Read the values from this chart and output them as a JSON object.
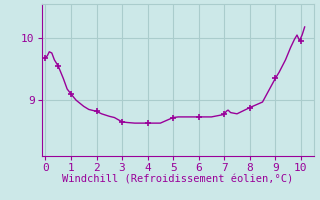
{
  "x": [
    0,
    0.08,
    0.15,
    0.25,
    0.35,
    0.5,
    0.6,
    0.7,
    0.85,
    1.0,
    1.1,
    1.2,
    1.35,
    1.5,
    1.7,
    2.0,
    2.1,
    2.2,
    2.35,
    2.5,
    2.7,
    3.0,
    3.2,
    3.5,
    4.0,
    4.2,
    4.5,
    5.0,
    5.2,
    5.5,
    6.0,
    6.2,
    6.5,
    7.0,
    7.08,
    7.15,
    7.25,
    7.5,
    8.0,
    8.5,
    9.0,
    9.15,
    9.4,
    9.6,
    9.75,
    9.85,
    9.95,
    10.05,
    10.15
  ],
  "y": [
    9.68,
    9.72,
    9.78,
    9.76,
    9.65,
    9.55,
    9.45,
    9.35,
    9.18,
    9.1,
    9.05,
    9.0,
    8.95,
    8.9,
    8.85,
    8.82,
    8.8,
    8.78,
    8.76,
    8.74,
    8.72,
    8.65,
    8.64,
    8.63,
    8.63,
    8.63,
    8.63,
    8.72,
    8.73,
    8.73,
    8.73,
    8.73,
    8.73,
    8.77,
    8.82,
    8.84,
    8.8,
    8.78,
    8.88,
    8.97,
    9.35,
    9.45,
    9.65,
    9.85,
    9.98,
    10.05,
    9.96,
    10.05,
    10.18
  ],
  "marker_x": [
    0,
    0.5,
    1.0,
    2.0,
    3.0,
    4.0,
    5.0,
    6.0,
    7.0,
    8.0,
    9.0,
    10.0
  ],
  "marker_y": [
    9.68,
    9.55,
    9.1,
    8.82,
    8.65,
    8.63,
    8.72,
    8.73,
    8.77,
    8.88,
    9.35,
    9.96
  ],
  "line_color": "#990099",
  "marker_color": "#990099",
  "bg_color": "#cce8e8",
  "grid_color": "#aacccc",
  "xlabel": "Windchill (Refroidissement éolien,°C)",
  "xlim": [
    -0.15,
    10.5
  ],
  "ylim": [
    8.1,
    10.55
  ],
  "xticks": [
    0,
    1,
    2,
    3,
    4,
    5,
    6,
    7,
    8,
    9,
    10
  ],
  "yticks": [
    9,
    10
  ],
  "xlabel_color": "#990099",
  "tick_color": "#990099",
  "font": "monospace",
  "xlabel_fontsize": 7.5,
  "tick_fontsize": 8
}
